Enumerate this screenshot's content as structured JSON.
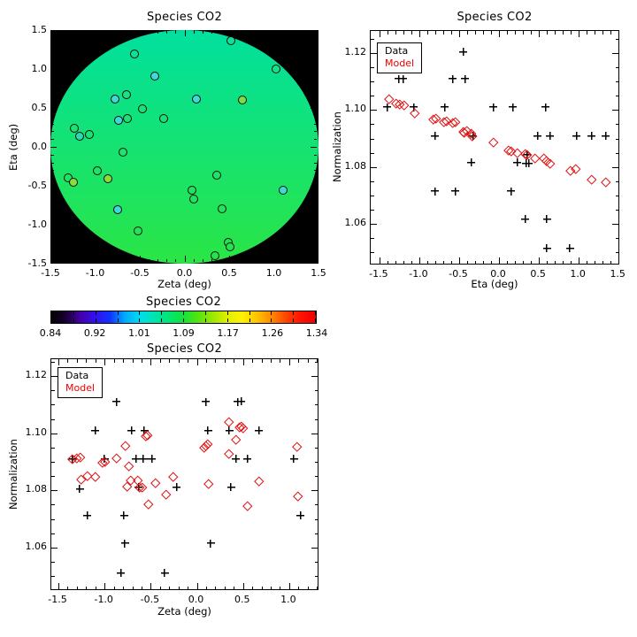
{
  "legend": {
    "data": "Data",
    "model": "Model"
  },
  "colors": {
    "data_marker": "#000000",
    "model_marker": "#e01010",
    "model_label": "#ee0000",
    "map_background": "#000000",
    "disk_top": "#00e09e",
    "disk_bottom": "#2ae545"
  },
  "chart_data": [
    {
      "id": "map",
      "type": "scatter",
      "title": "Species CO2",
      "xlabel": "Zeta (deg)",
      "ylabel": "Eta (deg)",
      "xlim": [
        -1.5,
        1.5
      ],
      "ylim": [
        -1.5,
        1.5
      ],
      "xticks": {
        "values": [
          -1.5,
          -1.0,
          -0.5,
          0.0,
          0.5,
          1.0,
          1.5
        ],
        "labels": [
          "-1.5",
          "-1.0",
          "-0.5",
          "0.0",
          "0.5",
          "1.0",
          "1.5"
        ],
        "minor": 0.1
      },
      "yticks": {
        "values": [
          -1.5,
          -1.0,
          -0.5,
          0.0,
          0.5,
          1.0,
          1.5
        ],
        "labels": [
          "-1.5",
          "-1.0",
          "-0.5",
          "0.0",
          "0.5",
          "1.0",
          "1.5"
        ],
        "minor": 0.1
      },
      "disk": {
        "radius_deg": 1.5,
        "top_color": "#00e09e",
        "bottom_color": "#2ae545"
      },
      "points": [
        [
          0.53,
          1.36,
          "#12e195"
        ],
        [
          -0.55,
          1.19,
          "#12e195"
        ],
        [
          1.03,
          0.99,
          "#15e28b"
        ],
        [
          -0.32,
          0.9,
          "#3fd9da"
        ],
        [
          -0.77,
          0.61,
          "#3fd9da"
        ],
        [
          -0.64,
          0.66,
          "#16e383"
        ],
        [
          0.14,
          0.61,
          "#3fd9da"
        ],
        [
          0.66,
          0.6,
          "#7edd44"
        ],
        [
          -0.46,
          0.48,
          "#18e37b"
        ],
        [
          -0.73,
          0.33,
          "#3fd9da"
        ],
        [
          -0.63,
          0.36,
          "#19e377"
        ],
        [
          -0.23,
          0.36,
          "#19e377"
        ],
        [
          -1.23,
          0.23,
          "#1ae373"
        ],
        [
          -1.17,
          0.13,
          "#2fd9ae"
        ],
        [
          -1.06,
          0.15,
          "#1ae373"
        ],
        [
          -0.68,
          -0.08,
          "#1ce46c"
        ],
        [
          -0.97,
          -0.31,
          "#1ee465"
        ],
        [
          -0.85,
          -0.42,
          "#8cdc3c"
        ],
        [
          -1.3,
          -0.4,
          "#1ee465"
        ],
        [
          -1.24,
          -0.46,
          "#8cdc3c"
        ],
        [
          0.37,
          -0.37,
          "#1ee465"
        ],
        [
          0.09,
          -0.57,
          "#20e45e"
        ],
        [
          0.11,
          -0.68,
          "#20e45e"
        ],
        [
          0.43,
          -0.8,
          "#21e45a"
        ],
        [
          1.11,
          -0.57,
          "#3fd9da"
        ],
        [
          -0.74,
          -0.81,
          "#3fd9da"
        ],
        [
          -0.51,
          -1.09,
          "#23e453"
        ],
        [
          0.5,
          -1.23,
          "#24e44e"
        ],
        [
          0.52,
          -1.29,
          "#24e44e"
        ],
        [
          0.35,
          -1.41,
          "#25e44b"
        ]
      ]
    },
    {
      "id": "eta_scatter",
      "type": "scatter",
      "title": "Species CO2",
      "xlabel": "Eta (deg)",
      "ylabel": "Normalization",
      "xlim": [
        -1.61,
        1.52
      ],
      "ylim": [
        1.0454,
        1.1278
      ],
      "xticks": {
        "values": [
          -1.5,
          -1.0,
          -0.5,
          0.0,
          0.5,
          1.0,
          1.5
        ],
        "labels": [
          "-1.5",
          "-1.0",
          "-0.5",
          "0.0",
          "0.5",
          "1.0",
          "1.5"
        ],
        "minor": 0.1
      },
      "yticks": {
        "values": [
          1.06,
          1.08,
          1.1,
          1.12
        ],
        "labels": [
          "1.06",
          "1.08",
          "1.10",
          "1.12"
        ],
        "minor": 0.005
      },
      "legend_position": "top-left",
      "series": [
        {
          "name": "Data",
          "marker": "plus",
          "color": "#000000",
          "points": [
            [
              -1.4,
              1.101
            ],
            [
              -1.26,
              1.111
            ],
            [
              -1.2,
              1.111
            ],
            [
              -1.07,
              1.101
            ],
            [
              -0.8,
              1.091
            ],
            [
              -0.8,
              1.0715
            ],
            [
              -0.68,
              1.101
            ],
            [
              -0.58,
              1.111
            ],
            [
              -0.55,
              1.0715
            ],
            [
              -0.45,
              1.1205
            ],
            [
              -0.43,
              1.111
            ],
            [
              -0.35,
              1.0815
            ],
            [
              -0.33,
              1.091
            ],
            [
              -0.07,
              1.101
            ],
            [
              0.15,
              1.0715
            ],
            [
              0.17,
              1.101
            ],
            [
              0.23,
              1.0815
            ],
            [
              0.34,
              1.0812
            ],
            [
              0.37,
              1.0812
            ],
            [
              0.33,
              1.0617
            ],
            [
              0.35,
              1.0845
            ],
            [
              0.48,
              1.091
            ],
            [
              0.58,
              1.101
            ],
            [
              0.6,
              1.0617
            ],
            [
              0.6,
              1.0515
            ],
            [
              0.64,
              1.091
            ],
            [
              0.89,
              1.0515
            ],
            [
              0.97,
              1.091
            ],
            [
              1.16,
              1.091
            ],
            [
              1.34,
              1.091
            ]
          ]
        },
        {
          "name": "Model",
          "marker": "diamond",
          "color": "#e01010",
          "points": [
            [
              -1.38,
              1.104
            ],
            [
              -1.29,
              1.1023
            ],
            [
              -1.24,
              1.102
            ],
            [
              -1.19,
              1.1018
            ],
            [
              -1.06,
              1.099
            ],
            [
              -0.82,
              1.0966
            ],
            [
              -0.79,
              1.097
            ],
            [
              -0.69,
              1.0958
            ],
            [
              -0.66,
              1.0962
            ],
            [
              -0.58,
              1.0955
            ],
            [
              -0.55,
              1.0959
            ],
            [
              -0.45,
              1.0924
            ],
            [
              -0.43,
              1.0921
            ],
            [
              -0.4,
              1.0927
            ],
            [
              -0.35,
              1.0916
            ],
            [
              -0.33,
              1.0908
            ],
            [
              -0.07,
              1.0885
            ],
            [
              0.12,
              1.0857
            ],
            [
              0.16,
              1.0854
            ],
            [
              0.23,
              1.0848
            ],
            [
              0.33,
              1.0845
            ],
            [
              0.35,
              1.0843
            ],
            [
              0.46,
              1.0829
            ],
            [
              0.57,
              1.0829
            ],
            [
              0.6,
              1.0821
            ],
            [
              0.64,
              1.0812
            ],
            [
              0.9,
              1.0788
            ],
            [
              0.97,
              1.0792
            ],
            [
              1.16,
              1.0755
            ],
            [
              1.34,
              1.0745
            ]
          ]
        }
      ]
    },
    {
      "id": "colorbar",
      "type": "heatmap",
      "title": "Species CO2",
      "tick_labels": [
        "0.84",
        "0.92",
        "1.01",
        "1.09",
        "1.17",
        "1.26",
        "1.34"
      ],
      "range": [
        0.84,
        1.34
      ],
      "gradient": [
        "#000000",
        "#1a0033",
        "#4400aa",
        "#3311ee",
        "#1133ff",
        "#00aaff",
        "#00dbee",
        "#00e4b0",
        "#00e575",
        "#14e43c",
        "#55e410",
        "#9ee800",
        "#dff000",
        "#fff200",
        "#ffc400",
        "#ff8800",
        "#ff4400",
        "#ff1100",
        "#ee0000"
      ]
    },
    {
      "id": "zeta_scatter",
      "type": "scatter",
      "title": "Species CO2",
      "xlabel": "Zeta (deg)",
      "ylabel": "Normalization",
      "xlim": [
        -1.577,
        1.327
      ],
      "ylim": [
        1.0448,
        1.1259
      ],
      "xticks": {
        "values": [
          -1.5,
          -1.0,
          -0.5,
          0.0,
          0.5,
          1.0
        ],
        "labels": [
          "-1.5",
          "-1.0",
          "-0.5",
          "0.0",
          "0.5",
          "1.0"
        ],
        "minor": 0.1
      },
      "yticks": {
        "values": [
          1.06,
          1.08,
          1.1,
          1.12
        ],
        "labels": [
          "1.06",
          "1.08",
          "1.10",
          "1.12"
        ],
        "minor": 0.005
      },
      "legend_position": "top-left",
      "series": [
        {
          "name": "Data",
          "marker": "plus",
          "color": "#000000",
          "points": [
            [
              -1.3,
              1.1203
            ],
            [
              -0.87,
              1.111
            ],
            [
              0.1,
              1.111
            ],
            [
              0.44,
              1.111
            ],
            [
              0.48,
              1.1112
            ],
            [
              -1.1,
              1.101
            ],
            [
              -0.71,
              1.101
            ],
            [
              -0.57,
              1.101
            ],
            [
              0.12,
              1.101
            ],
            [
              0.35,
              1.101
            ],
            [
              0.67,
              1.101
            ],
            [
              -1.35,
              1.091
            ],
            [
              -1.0,
              1.091
            ],
            [
              -0.66,
              1.091
            ],
            [
              -0.58,
              1.091
            ],
            [
              -0.49,
              1.091
            ],
            [
              0.42,
              1.091
            ],
            [
              0.55,
              1.091
            ],
            [
              1.05,
              1.091
            ],
            [
              -1.27,
              1.0805
            ],
            [
              -0.63,
              1.0812
            ],
            [
              -0.22,
              1.0812
            ],
            [
              0.37,
              1.0812
            ],
            [
              -1.19,
              1.0712
            ],
            [
              -0.79,
              1.0712
            ],
            [
              1.12,
              1.0712
            ],
            [
              -0.78,
              1.0615
            ],
            [
              0.15,
              1.0615
            ],
            [
              -0.82,
              1.0512
            ],
            [
              -0.35,
              1.0512
            ]
          ]
        },
        {
          "name": "Model",
          "marker": "diamond",
          "color": "#e01010",
          "points": [
            [
              -1.35,
              1.0909
            ],
            [
              -1.3,
              1.0913
            ],
            [
              -1.26,
              1.0916
            ],
            [
              -1.25,
              1.0838
            ],
            [
              -1.18,
              1.085
            ],
            [
              -1.1,
              1.0847
            ],
            [
              -1.02,
              1.0897
            ],
            [
              -0.99,
              1.0899
            ],
            [
              -0.87,
              1.0913
            ],
            [
              -0.77,
              1.0957
            ],
            [
              -0.73,
              1.0886
            ],
            [
              -0.75,
              1.0812
            ],
            [
              -0.71,
              1.0836
            ],
            [
              -0.64,
              1.0836
            ],
            [
              -0.62,
              1.081
            ],
            [
              -0.59,
              1.0809
            ],
            [
              -0.55,
              1.0989
            ],
            [
              -0.53,
              1.0994
            ],
            [
              -0.52,
              1.0751
            ],
            [
              -0.45,
              1.0826
            ],
            [
              -0.33,
              1.0786
            ],
            [
              -0.25,
              1.0846
            ],
            [
              0.08,
              1.0948
            ],
            [
              0.1,
              1.0956
            ],
            [
              0.12,
              1.0961
            ],
            [
              0.13,
              1.0821
            ],
            [
              0.35,
              1.104
            ],
            [
              0.35,
              1.0928
            ],
            [
              0.43,
              1.0976
            ],
            [
              0.46,
              1.102
            ],
            [
              0.48,
              1.1023
            ],
            [
              0.5,
              1.1018
            ],
            [
              0.55,
              1.0746
            ],
            [
              0.68,
              1.0831
            ],
            [
              1.09,
              1.0953
            ],
            [
              1.1,
              1.0779
            ]
          ]
        }
      ]
    }
  ]
}
